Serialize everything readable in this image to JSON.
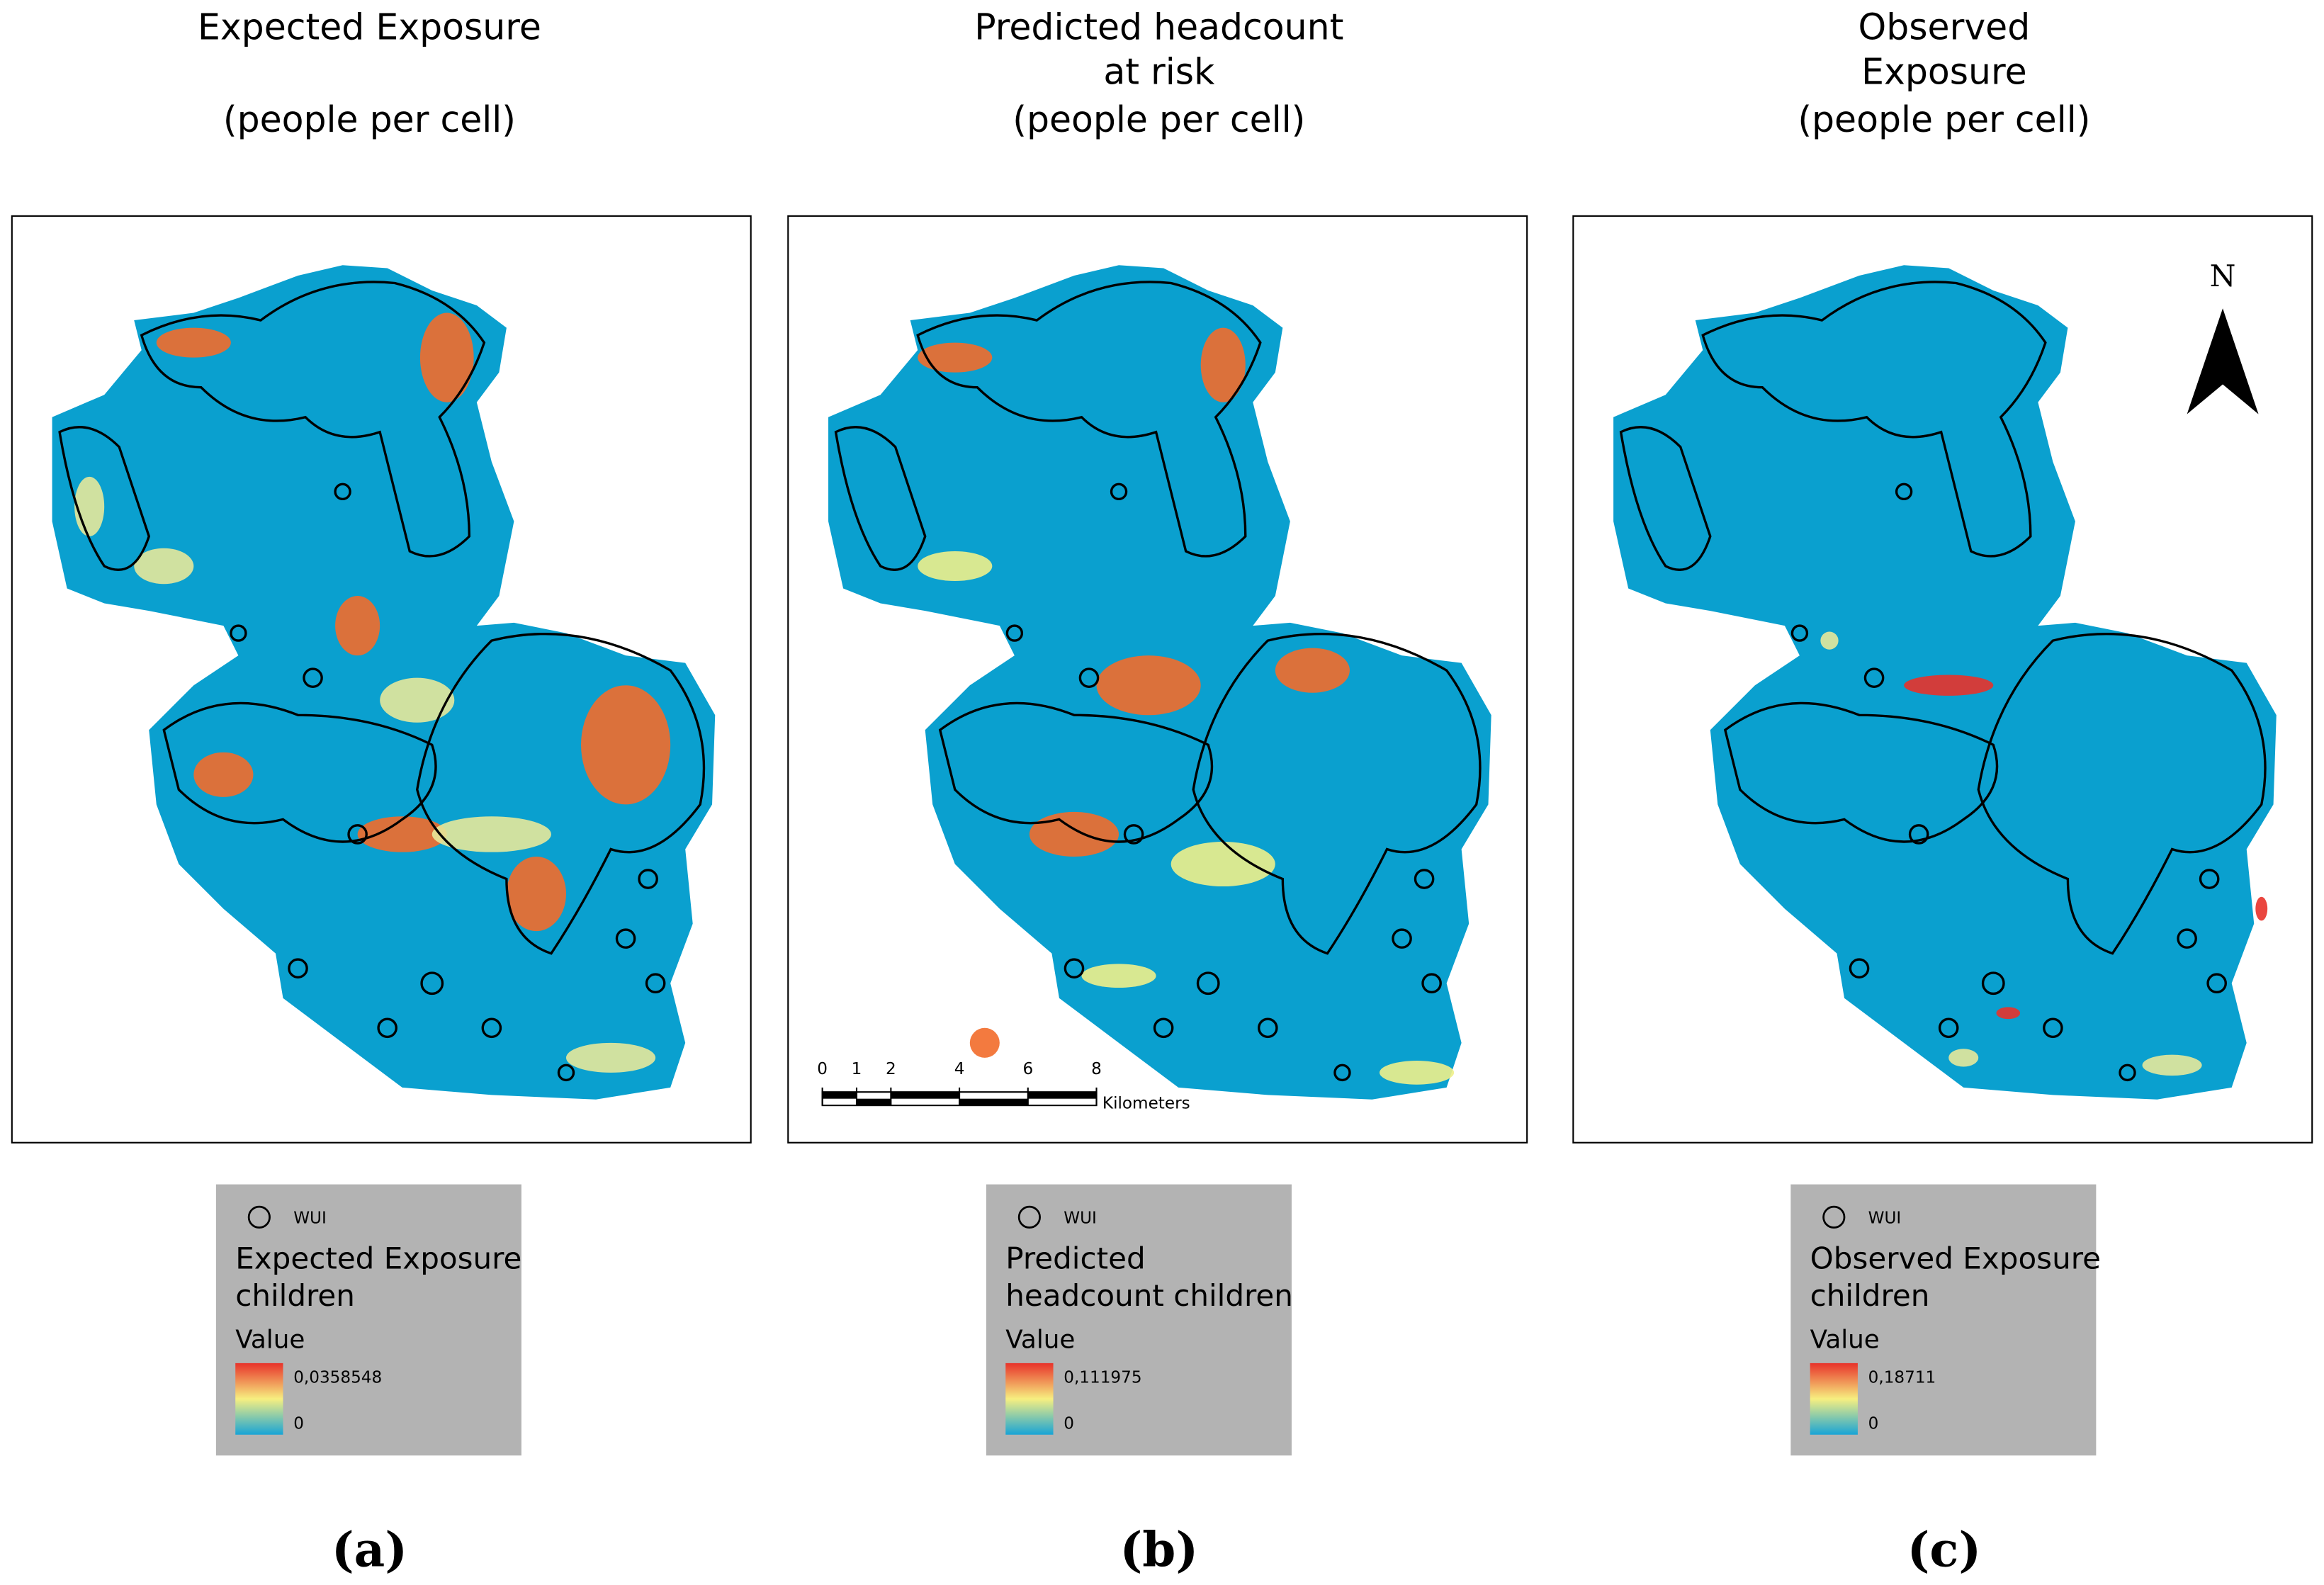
{
  "panels": [
    {
      "title_lines": [
        "Expected Exposure",
        "(people per cell)"
      ],
      "legend": {
        "symbol_label": "WUI",
        "title_lines": [
          "Expected Exposure",
          "children"
        ],
        "value_heading": "Value",
        "max_label": "0,0358548",
        "min_label": "0"
      },
      "label": "(a)"
    },
    {
      "title_lines": [
        "Predicted headcount",
        "at risk",
        "(people per cell)"
      ],
      "legend": {
        "symbol_label": "WUI",
        "title_lines": [
          "Predicted",
          "headcount children"
        ],
        "value_heading": "Value",
        "max_label": "0,111975",
        "min_label": "0"
      },
      "label": "(b)"
    },
    {
      "title_lines": [
        "Observed",
        "Exposure",
        "(people per cell)"
      ],
      "legend": {
        "symbol_label": "WUI",
        "title_lines": [
          "Observed Exposure",
          "children"
        ],
        "value_heading": "Value",
        "max_label": "0,18711",
        "min_label": "0"
      },
      "label": "(c)"
    }
  ],
  "scale_bar": {
    "ticks": [
      0,
      1,
      2,
      4,
      6,
      8
    ],
    "unit": "Kilometers"
  },
  "north_arrow": {
    "label": "N"
  }
}
